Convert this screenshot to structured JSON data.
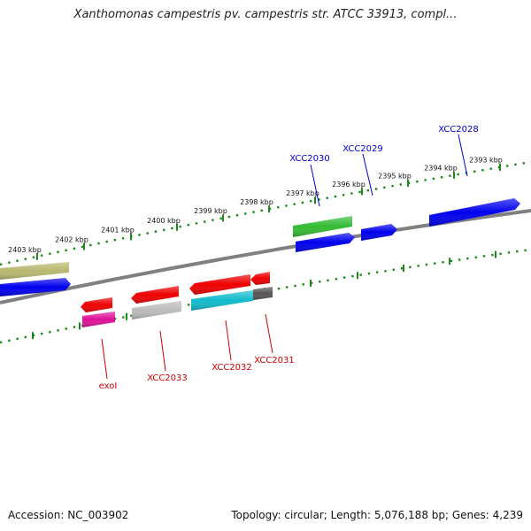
{
  "title": "Xanthomonas campestris pv. campestris str. ATCC 33913, compl...",
  "footer": {
    "accession": "Accession: NC_003902",
    "summary": "Topology: circular; Length: 5,076,188 bp; Genes: 4,239"
  },
  "colors": {
    "backbone": "#808080",
    "tick_dots": "#1a8a1a",
    "forward_label": "#0000cc",
    "reverse_label": "#cc0000"
  },
  "ticks": [
    {
      "label": "2403 kbp"
    },
    {
      "label": "2402 kbp"
    },
    {
      "label": "2401 kbp"
    },
    {
      "label": "2400 kbp"
    },
    {
      "label": "2399 kbp"
    },
    {
      "label": "2398 kbp"
    },
    {
      "label": "2397 kbp"
    },
    {
      "label": "2396 kbp"
    },
    {
      "label": "2395 kbp"
    },
    {
      "label": "2394 kbp"
    },
    {
      "label": "2393 kbp"
    }
  ],
  "gene_labels": [
    {
      "name": "XCC2030",
      "strand": "forward"
    },
    {
      "name": "XCC2029",
      "strand": "forward"
    },
    {
      "name": "XCC2028",
      "strand": "forward"
    },
    {
      "name": "exoI",
      "strand": "reverse"
    },
    {
      "name": "XCC2033",
      "strand": "reverse"
    },
    {
      "name": "XCC2032",
      "strand": "reverse"
    },
    {
      "name": "XCC2031",
      "strand": "reverse"
    }
  ],
  "features": [
    {
      "name": "olive-feature",
      "color": "#b8b870"
    },
    {
      "name": "blue-gene-left",
      "color": "#0000ee"
    },
    {
      "name": "green-feature",
      "color": "#33bb33"
    },
    {
      "name": "blue-gene-xcc2030",
      "color": "#0000ee"
    },
    {
      "name": "blue-gene-xcc2029",
      "color": "#0000ee"
    },
    {
      "name": "blue-gene-xcc2028",
      "color": "#0000ee"
    },
    {
      "name": "red-gene-exoi",
      "color": "#ee0000"
    },
    {
      "name": "magenta-feature-exoi",
      "color": "#dd1199"
    },
    {
      "name": "red-gene-xcc2033",
      "color": "#ee0000"
    },
    {
      "name": "gray-feature-xcc2033",
      "color": "#bbbbbb"
    },
    {
      "name": "red-gene-xcc2032",
      "color": "#ee0000"
    },
    {
      "name": "cyan-feature-xcc2032",
      "color": "#11bbcc"
    },
    {
      "name": "red-gene-xcc2031",
      "color": "#ee0000"
    },
    {
      "name": "darkgray-feature-xcc2031",
      "color": "#555555"
    }
  ]
}
